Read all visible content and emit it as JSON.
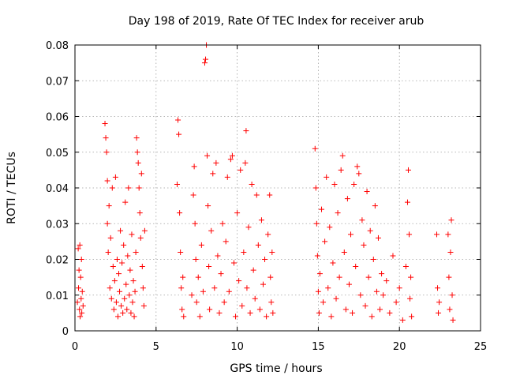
{
  "chart_data": {
    "type": "scatter",
    "title": "Day 198 of 2019, Rate Of TEC Index for receiver arub",
    "xlabel": "GPS time / hours",
    "ylabel": "ROTI / TECUs",
    "xlim": [
      0,
      25
    ],
    "ylim": [
      0,
      0.08
    ],
    "xticks": [
      0,
      5,
      10,
      15,
      20,
      25
    ],
    "xtick_labels": [
      "0",
      "5",
      "10",
      "15",
      "20",
      "25"
    ],
    "yticks": [
      0,
      0.01,
      0.02,
      0.03,
      0.04,
      0.05,
      0.06,
      0.07,
      0.08
    ],
    "ytick_labels": [
      "0",
      "0.01",
      "0.02",
      "0.03",
      "0.04",
      "0.05",
      "0.06",
      "0.07",
      "0.08"
    ],
    "grid": true,
    "marker": "+",
    "marker_color": "#ff0000",
    "series": [
      {
        "points": [
          [
            0.15,
            0.008
          ],
          [
            0.2,
            0.023
          ],
          [
            0.22,
            0.012
          ],
          [
            0.25,
            0.017
          ],
          [
            0.28,
            0.006
          ],
          [
            0.3,
            0.024
          ],
          [
            0.32,
            0.004
          ],
          [
            0.35,
            0.015
          ],
          [
            0.38,
            0.009
          ],
          [
            0.4,
            0.02
          ],
          [
            0.42,
            0.005
          ],
          [
            0.45,
            0.011
          ],
          [
            0.5,
            0.007
          ],
          [
            1.85,
            0.058
          ],
          [
            1.9,
            0.054
          ],
          [
            1.95,
            0.05
          ],
          [
            2.0,
            0.042
          ],
          [
            2.0,
            0.03
          ],
          [
            2.05,
            0.022
          ],
          [
            2.1,
            0.035
          ],
          [
            2.15,
            0.012
          ],
          [
            2.2,
            0.026
          ],
          [
            2.25,
            0.009
          ],
          [
            2.3,
            0.04
          ],
          [
            2.35,
            0.018
          ],
          [
            2.4,
            0.006
          ],
          [
            2.45,
            0.014
          ],
          [
            2.5,
            0.043
          ],
          [
            2.55,
            0.008
          ],
          [
            2.6,
            0.02
          ],
          [
            2.65,
            0.004
          ],
          [
            2.7,
            0.016
          ],
          [
            2.75,
            0.011
          ],
          [
            2.8,
            0.028
          ],
          [
            2.85,
            0.007
          ],
          [
            2.9,
            0.019
          ],
          [
            2.95,
            0.005
          ],
          [
            3.0,
            0.024
          ],
          [
            3.05,
            0.009
          ],
          [
            3.1,
            0.036
          ],
          [
            3.15,
            0.013
          ],
          [
            3.2,
            0.006
          ],
          [
            3.25,
            0.021
          ],
          [
            3.3,
            0.04
          ],
          [
            3.35,
            0.01
          ],
          [
            3.4,
            0.017
          ],
          [
            3.45,
            0.005
          ],
          [
            3.5,
            0.027
          ],
          [
            3.55,
            0.008
          ],
          [
            3.6,
            0.014
          ],
          [
            3.65,
            0.004
          ],
          [
            3.7,
            0.011
          ],
          [
            3.75,
            0.022
          ],
          [
            3.8,
            0.054
          ],
          [
            3.85,
            0.05
          ],
          [
            3.9,
            0.047
          ],
          [
            3.95,
            0.04
          ],
          [
            4.0,
            0.033
          ],
          [
            4.05,
            0.026
          ],
          [
            4.1,
            0.044
          ],
          [
            4.15,
            0.018
          ],
          [
            4.2,
            0.012
          ],
          [
            4.25,
            0.007
          ],
          [
            4.3,
            0.028
          ],
          [
            6.3,
            0.041
          ],
          [
            6.35,
            0.059
          ],
          [
            6.4,
            0.055
          ],
          [
            6.45,
            0.033
          ],
          [
            6.5,
            0.022
          ],
          [
            6.55,
            0.012
          ],
          [
            6.6,
            0.006
          ],
          [
            6.65,
            0.015
          ],
          [
            6.7,
            0.004
          ],
          [
            7.2,
            0.01
          ],
          [
            7.3,
            0.038
          ],
          [
            7.35,
            0.046
          ],
          [
            7.4,
            0.03
          ],
          [
            7.45,
            0.02
          ],
          [
            7.5,
            0.008
          ],
          [
            7.6,
            0.015
          ],
          [
            7.7,
            0.004
          ],
          [
            7.8,
            0.024
          ],
          [
            7.9,
            0.011
          ],
          [
            8.0,
            0.075
          ],
          [
            8.05,
            0.076
          ],
          [
            8.1,
            0.08
          ],
          [
            8.15,
            0.049
          ],
          [
            8.2,
            0.035
          ],
          [
            8.25,
            0.018
          ],
          [
            8.3,
            0.006
          ],
          [
            8.4,
            0.028
          ],
          [
            8.5,
            0.044
          ],
          [
            8.6,
            0.012
          ],
          [
            8.7,
            0.047
          ],
          [
            8.8,
            0.021
          ],
          [
            8.9,
            0.005
          ],
          [
            9.0,
            0.016
          ],
          [
            9.1,
            0.03
          ],
          [
            9.2,
            0.008
          ],
          [
            9.3,
            0.025
          ],
          [
            9.4,
            0.043
          ],
          [
            9.5,
            0.011
          ],
          [
            9.6,
            0.048
          ],
          [
            9.7,
            0.049
          ],
          [
            9.8,
            0.019
          ],
          [
            9.9,
            0.004
          ],
          [
            10.0,
            0.033
          ],
          [
            10.1,
            0.014
          ],
          [
            10.2,
            0.045
          ],
          [
            10.3,
            0.007
          ],
          [
            10.4,
            0.022
          ],
          [
            10.5,
            0.047
          ],
          [
            10.55,
            0.056
          ],
          [
            10.6,
            0.012
          ],
          [
            10.7,
            0.029
          ],
          [
            10.8,
            0.005
          ],
          [
            10.9,
            0.041
          ],
          [
            11.0,
            0.017
          ],
          [
            11.1,
            0.009
          ],
          [
            11.2,
            0.038
          ],
          [
            11.3,
            0.024
          ],
          [
            11.4,
            0.006
          ],
          [
            11.5,
            0.031
          ],
          [
            11.6,
            0.013
          ],
          [
            11.7,
            0.02
          ],
          [
            11.8,
            0.004
          ],
          [
            11.9,
            0.027
          ],
          [
            12.0,
            0.038
          ],
          [
            12.05,
            0.015
          ],
          [
            12.1,
            0.008
          ],
          [
            12.15,
            0.022
          ],
          [
            12.2,
            0.005
          ],
          [
            14.8,
            0.051
          ],
          [
            14.85,
            0.04
          ],
          [
            14.9,
            0.03
          ],
          [
            14.95,
            0.021
          ],
          [
            15.0,
            0.011
          ],
          [
            15.05,
            0.005
          ],
          [
            15.1,
            0.016
          ],
          [
            15.2,
            0.034
          ],
          [
            15.3,
            0.008
          ],
          [
            15.4,
            0.025
          ],
          [
            15.5,
            0.043
          ],
          [
            15.6,
            0.012
          ],
          [
            15.7,
            0.029
          ],
          [
            15.8,
            0.004
          ],
          [
            15.9,
            0.019
          ],
          [
            16.0,
            0.041
          ],
          [
            16.1,
            0.009
          ],
          [
            16.2,
            0.033
          ],
          [
            16.3,
            0.015
          ],
          [
            16.4,
            0.045
          ],
          [
            16.5,
            0.049
          ],
          [
            16.6,
            0.022
          ],
          [
            16.7,
            0.006
          ],
          [
            16.8,
            0.037
          ],
          [
            16.9,
            0.013
          ],
          [
            17.0,
            0.027
          ],
          [
            17.1,
            0.005
          ],
          [
            17.2,
            0.041
          ],
          [
            17.3,
            0.018
          ],
          [
            17.4,
            0.046
          ],
          [
            17.5,
            0.044
          ],
          [
            17.6,
            0.01
          ],
          [
            17.7,
            0.031
          ],
          [
            17.8,
            0.024
          ],
          [
            17.9,
            0.007
          ],
          [
            18.0,
            0.039
          ],
          [
            18.1,
            0.015
          ],
          [
            18.2,
            0.028
          ],
          [
            18.3,
            0.004
          ],
          [
            18.4,
            0.02
          ],
          [
            18.5,
            0.035
          ],
          [
            18.6,
            0.011
          ],
          [
            18.7,
            0.026
          ],
          [
            18.8,
            0.006
          ],
          [
            18.9,
            0.016
          ],
          [
            19.0,
            0.01
          ],
          [
            19.2,
            0.014
          ],
          [
            19.4,
            0.005
          ],
          [
            19.6,
            0.021
          ],
          [
            19.8,
            0.008
          ],
          [
            20.0,
            0.012
          ],
          [
            20.2,
            0.003
          ],
          [
            20.4,
            0.018
          ],
          [
            20.5,
            0.036
          ],
          [
            20.55,
            0.045
          ],
          [
            20.6,
            0.027
          ],
          [
            20.65,
            0.009
          ],
          [
            20.7,
            0.015
          ],
          [
            20.75,
            0.004
          ],
          [
            22.3,
            0.027
          ],
          [
            22.35,
            0.012
          ],
          [
            22.4,
            0.005
          ],
          [
            22.45,
            0.008
          ],
          [
            23.0,
            0.027
          ],
          [
            23.05,
            0.015
          ],
          [
            23.1,
            0.006
          ],
          [
            23.15,
            0.022
          ],
          [
            23.2,
            0.031
          ],
          [
            23.25,
            0.01
          ],
          [
            23.3,
            0.003
          ]
        ]
      }
    ]
  }
}
